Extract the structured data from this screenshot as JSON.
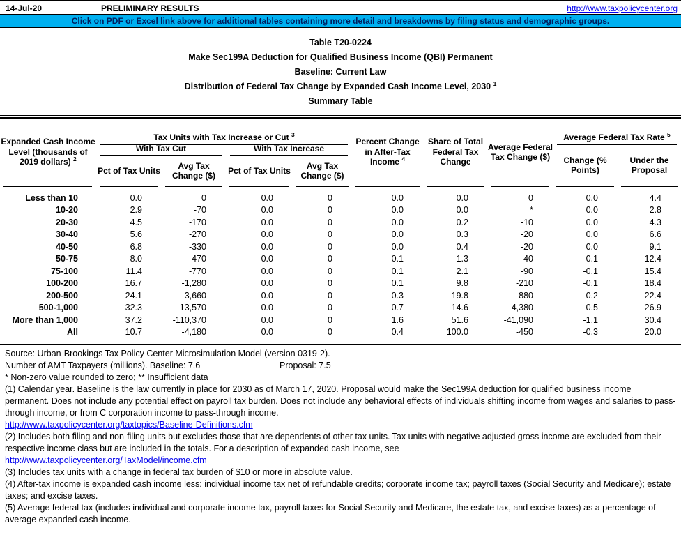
{
  "topbar": {
    "date": "14-Jul-20",
    "status": "PRELIMINARY RESULTS",
    "site_link": "http://www.taxpolicycenter.org"
  },
  "banner": {
    "text": "Click on PDF or Excel link above for additional tables containing more detail and breakdowns by filing status and demographic groups.",
    "bg_color": "#00B0F0",
    "text_color": "#002060"
  },
  "title": {
    "l1": "Table T20-0224",
    "l2": "Make Sec199A Deduction for Qualified Business Income (QBI) Permanent",
    "l3": "Baseline: Current Law",
    "l4": "Distribution of Federal Tax Change by Expanded Cash Income Level, 2030",
    "l4_sup": "1",
    "l5": "Summary Table"
  },
  "table": {
    "header": {
      "income_level": {
        "text": "Expanded Cash Income Level (thousands of 2019 dollars)",
        "sup": "2"
      },
      "tax_units_group": {
        "text": "Tax Units with Tax Increase or Cut",
        "sup": "3"
      },
      "with_cut": "With Tax Cut",
      "with_increase": "With Tax Increase",
      "pct_units": "Pct of Tax Units",
      "avg_change": "Avg Tax Change ($)",
      "pct_change_after_tax": {
        "text": "Percent Change in After-Tax Income",
        "sup": "4"
      },
      "share_total": "Share of Total Federal Tax Change",
      "avg_fed_change": "Average Federal Tax Change ($)",
      "avg_rate_group": {
        "text": "Average Federal Tax Rate",
        "sup": "5"
      },
      "change_points": "Change (% Points)",
      "under_proposal": "Under the Proposal"
    },
    "rows": [
      {
        "label": "Less than 10",
        "values": [
          "0.0",
          "0",
          "0.0",
          "0",
          "0.0",
          "0.0",
          "0",
          "0.0",
          "4.4"
        ]
      },
      {
        "label": "10-20",
        "values": [
          "2.9",
          "-70",
          "0.0",
          "0",
          "0.0",
          "0.0",
          "*",
          "0.0",
          "2.8"
        ]
      },
      {
        "label": "20-30",
        "values": [
          "4.5",
          "-170",
          "0.0",
          "0",
          "0.0",
          "0.2",
          "-10",
          "0.0",
          "4.3"
        ]
      },
      {
        "label": "30-40",
        "values": [
          "5.6",
          "-270",
          "0.0",
          "0",
          "0.0",
          "0.3",
          "-20",
          "0.0",
          "6.6"
        ]
      },
      {
        "label": "40-50",
        "values": [
          "6.8",
          "-330",
          "0.0",
          "0",
          "0.0",
          "0.4",
          "-20",
          "0.0",
          "9.1"
        ]
      },
      {
        "label": "50-75",
        "values": [
          "8.0",
          "-470",
          "0.0",
          "0",
          "0.1",
          "1.3",
          "-40",
          "-0.1",
          "12.4"
        ]
      },
      {
        "label": "75-100",
        "values": [
          "11.4",
          "-770",
          "0.0",
          "0",
          "0.1",
          "2.1",
          "-90",
          "-0.1",
          "15.4"
        ]
      },
      {
        "label": "100-200",
        "values": [
          "16.7",
          "-1,280",
          "0.0",
          "0",
          "0.1",
          "9.8",
          "-210",
          "-0.1",
          "18.4"
        ]
      },
      {
        "label": "200-500",
        "values": [
          "24.1",
          "-3,660",
          "0.0",
          "0",
          "0.3",
          "19.8",
          "-880",
          "-0.2",
          "22.4"
        ]
      },
      {
        "label": "500-1,000",
        "values": [
          "32.3",
          "-13,570",
          "0.0",
          "0",
          "0.7",
          "14.6",
          "-4,380",
          "-0.5",
          "26.9"
        ]
      },
      {
        "label": "More than 1,000",
        "values": [
          "37.2",
          "-110,370",
          "0.0",
          "0",
          "1.6",
          "51.6",
          "-41,090",
          "-1.1",
          "30.4"
        ]
      },
      {
        "label": "All",
        "values": [
          "10.7",
          "-4,180",
          "0.0",
          "0",
          "0.4",
          "100.0",
          "-450",
          "-0.3",
          "20.0"
        ]
      }
    ]
  },
  "notes": {
    "source": "Source: Urban-Brookings Tax Policy Center Microsimulation Model (version 0319-2).",
    "amt_label": "Number of AMT Taxpayers (millions).  Baseline: 7.6",
    "amt_proposal": "Proposal: 7.5",
    "legend": "* Non-zero value rounded to zero; ** Insufficient data",
    "note1": "(1) Calendar year. Baseline is the law currently in place for 2030 as of March 17, 2020. Proposal would make the Sec199A deduction for qualified business income permanent. Does not include any potential effect on payroll tax burden. Does not include any behavioral effects of individuals shifting income from wages and salaries to pass-through income, or from C corporation income to pass-through income.",
    "link1": "http://www.taxpolicycenter.org/taxtopics/Baseline-Definitions.cfm",
    "note2": "(2) Includes both filing and non-filing units but excludes those that are dependents of other tax units. Tax units with negative adjusted gross income are excluded from their respective income class but are included in the totals. For a description of expanded cash income, see",
    "link2": "http://www.taxpolicycenter.org/TaxModel/income.cfm",
    "note3": "(3) Includes tax units with a change in federal tax burden of $10 or more in absolute value.",
    "note4": "(4) After-tax income is expanded cash income less: individual income tax net of refundable credits; corporate income tax; payroll taxes (Social Security and Medicare); estate taxes; and excise taxes.",
    "note5": "(5) Average federal tax (includes individual and corporate income tax, payroll taxes for Social Security and Medicare, the estate tax, and excise taxes) as a percentage of average expanded cash income."
  }
}
